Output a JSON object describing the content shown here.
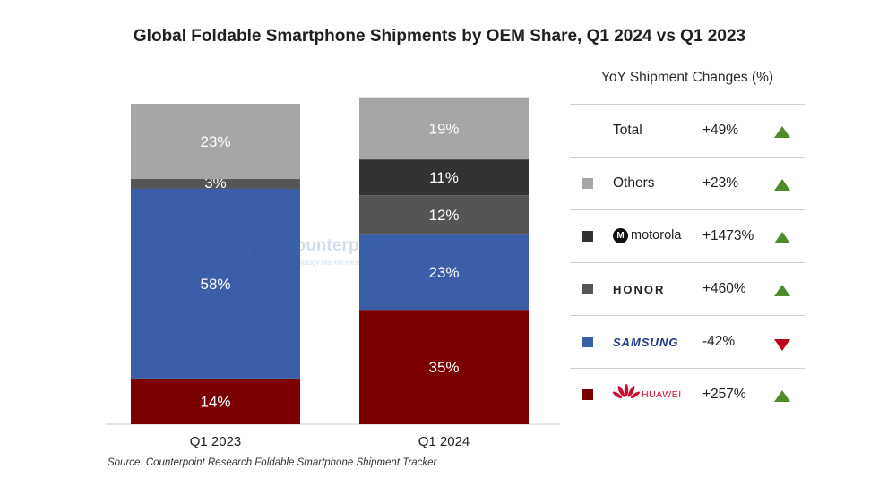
{
  "title": "Global Foldable Smartphone Shipments by OEM Share, Q1 2024 vs Q1 2023",
  "source": "Source: Counterpoint Research Foldable Smartphone Shipment Tracker",
  "watermark": {
    "name": "Counterpoint",
    "tagline": "Technology Market Research"
  },
  "chart_data": {
    "type": "bar",
    "stacked": true,
    "categories": [
      "Q1 2023",
      "Q1 2024"
    ],
    "series": [
      {
        "key": "huawei",
        "values": [
          14,
          35
        ],
        "color": "#7b0000"
      },
      {
        "key": "samsung",
        "values": [
          58,
          23
        ],
        "color": "#3a5ea8"
      },
      {
        "key": "honor",
        "values": [
          3,
          12
        ],
        "color": "#555555"
      },
      {
        "key": "motorola",
        "values": [
          0,
          11
        ],
        "color": "#333333"
      },
      {
        "key": "others",
        "values": [
          23,
          19
        ],
        "color": "#a6a6a6"
      }
    ],
    "labels": [
      [
        "14%",
        "58%",
        "3%",
        "",
        "23%"
      ],
      [
        "35%",
        "23%",
        "12%",
        "11%",
        "19%"
      ]
    ],
    "ylim": [
      0,
      98
    ]
  },
  "yoy": {
    "header": "YoY Shipment Changes (%)",
    "rows": [
      {
        "label": "Total",
        "change": "+49%",
        "direction": "up",
        "icon": "none"
      },
      {
        "label": "Others",
        "change": "+23%",
        "direction": "up",
        "color": "#a6a6a6",
        "icon": "none"
      },
      {
        "label": "motorola",
        "change": "+1473%",
        "direction": "up",
        "color": "#333333",
        "icon": "motorola-logo-icon"
      },
      {
        "label": "HONOR",
        "change": "+460%",
        "direction": "up",
        "color": "#555555",
        "icon": "none"
      },
      {
        "label": "SAMSUNG",
        "change": "-42%",
        "direction": "down",
        "color": "#3a5ea8",
        "icon": "none"
      },
      {
        "label": "HUAWEI",
        "change": "+257%",
        "direction": "up",
        "color": "#7b0000",
        "icon": "huawei-logo-icon"
      }
    ],
    "up_color": "#4f8a2c",
    "down_color": "#c0001a"
  }
}
